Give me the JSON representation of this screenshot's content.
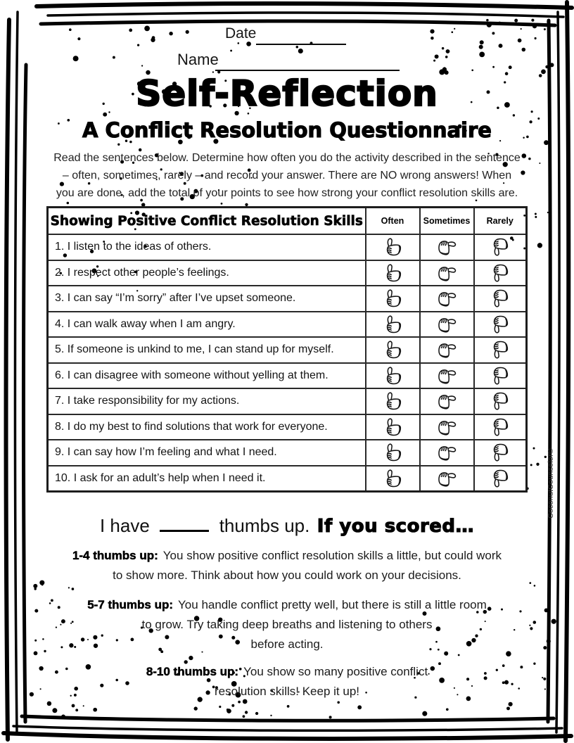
{
  "header": {
    "date_label": "Date",
    "name_label": "Name",
    "title": "Self-Reflection",
    "subtitle": "A Conflict Resolution Questionnaire",
    "instructions_lines": [
      "Read the sentences below. Determine how often you do the activity described in the sentence",
      "– often, sometimes, rarely – and record your answer. There are NO wrong answers! When",
      "you are done, add the total of your points to see how strong your conflict resolution skills are."
    ]
  },
  "table": {
    "title": "Showing Positive Conflict Resolution Skills",
    "columns": [
      {
        "label": "Often",
        "icon": "thumbs-up-icon"
      },
      {
        "label": "Sometimes",
        "icon": "thumbs-sideways-icon"
      },
      {
        "label": "Rarely",
        "icon": "thumbs-down-icon"
      }
    ],
    "rows": [
      "1. I listen to the ideas of others.",
      "2. I respect other people’s feelings.",
      "3. I can say “I’m sorry” after I’ve upset someone.",
      "4. I can walk away when I am angry.",
      "5. If someone is unkind to me, I can stand up for myself.",
      "6. I can disagree with someone without yelling at them.",
      "7. I take responsibility for my actions.",
      "8. I do my best to find solutions that work for everyone.",
      "9. I can say how I’m feeling and what I need.",
      "10. I ask for an adult’s help when I need it."
    ]
  },
  "score_line": {
    "prefix": "I have",
    "middle": "thumbs up.",
    "suffix": "If you scored…"
  },
  "bands": [
    {
      "label": "1-4 thumbs up:",
      "line1": "You show positive conflict resolution skills a little, but could work",
      "rest": [
        "to show more. Think about how you could work on your decisions."
      ]
    },
    {
      "label": "5-7 thumbs up:",
      "line1": "You handle conflict pretty well, but there is still a little room",
      "rest": [
        "to grow. Try taking deep breaths and listening to others",
        "before acting."
      ]
    },
    {
      "label": "8-10 thumbs up:",
      "line1": "You show so many positive conflict",
      "rest": [
        "resolution skills! Keep it up!"
      ]
    }
  ],
  "credit": "CoconutCounselor©",
  "colors": {
    "ink": "#000000",
    "paper": "#ffffff"
  }
}
